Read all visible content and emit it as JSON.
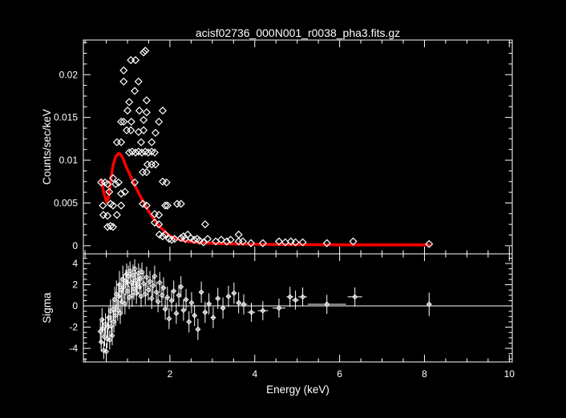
{
  "title": "acisf02736_000N001_r0038_pha3.fits.gz",
  "colors": {
    "background": "#000000",
    "foreground": "#ffffff",
    "model_line": "#ff0000"
  },
  "chart_data": [
    {
      "type": "scatter",
      "panel": "spectrum",
      "title": "acisf02736_000N001_r0038_pha3.fits.gz",
      "xlabel": "Energy (keV)",
      "ylabel": "Counts/sec/keV",
      "xlim": [
        -0.04,
        10.07
      ],
      "ylim": [
        -0.00095,
        0.02405
      ],
      "grid": false,
      "legend": "none",
      "marker": "open-diamond",
      "x_axis": {
        "major_values": [
          2,
          4,
          6,
          8,
          10
        ],
        "major_labels": [
          "2",
          "4",
          "6",
          "8",
          "10"
        ],
        "minor_step": 0.5
      },
      "y_axis": {
        "major_values": [
          0,
          0.005,
          0.01,
          0.015,
          0.02
        ],
        "major_labels": [
          "0",
          "0.005",
          "0.01",
          "0.015",
          "0.02"
        ],
        "minor_step": 0.00125
      },
      "points": [
        [
          1.38,
          0.0226
        ],
        [
          1.42,
          0.0228
        ],
        [
          1.08,
          0.0217
        ],
        [
          1.19,
          0.0217
        ],
        [
          0.91,
          0.0205
        ],
        [
          0.91,
          0.0192
        ],
        [
          1.26,
          0.0192
        ],
        [
          1.17,
          0.0181
        ],
        [
          1.04,
          0.0168
        ],
        [
          1.45,
          0.017
        ],
        [
          1.0,
          0.0158
        ],
        [
          1.28,
          0.0158
        ],
        [
          1.45,
          0.0156
        ],
        [
          1.83,
          0.0158
        ],
        [
          0.85,
          0.0145
        ],
        [
          0.91,
          0.0145
        ],
        [
          1.09,
          0.0145
        ],
        [
          1.38,
          0.0147
        ],
        [
          1.74,
          0.0145
        ],
        [
          0.98,
          0.0135
        ],
        [
          1.08,
          0.0135
        ],
        [
          1.26,
          0.0133
        ],
        [
          1.38,
          0.0135
        ],
        [
          1.66,
          0.0132
        ],
        [
          0.75,
          0.0121
        ],
        [
          0.85,
          0.0121
        ],
        [
          1.32,
          0.0121
        ],
        [
          1.57,
          0.0121
        ],
        [
          1.04,
          0.0109
        ],
        [
          1.11,
          0.011
        ],
        [
          1.19,
          0.0109
        ],
        [
          1.26,
          0.011
        ],
        [
          1.34,
          0.0109
        ],
        [
          1.42,
          0.011
        ],
        [
          1.49,
          0.0109
        ],
        [
          1.57,
          0.011
        ],
        [
          1.64,
          0.0109
        ],
        [
          1.47,
          0.0095
        ],
        [
          1.57,
          0.0095
        ],
        [
          1.66,
          0.0095
        ],
        [
          1.36,
          0.0086
        ],
        [
          1.45,
          0.0086
        ],
        [
          0.66,
          0.0079
        ],
        [
          1.17,
          0.0074
        ],
        [
          1.83,
          0.0075
        ],
        [
          1.92,
          0.0074
        ],
        [
          0.38,
          0.0074
        ],
        [
          0.47,
          0.0074
        ],
        [
          0.53,
          0.0072
        ],
        [
          0.72,
          0.0072
        ],
        [
          0.79,
          0.0074
        ],
        [
          0.57,
          0.0063
        ],
        [
          0.85,
          0.0061
        ],
        [
          0.94,
          0.0063
        ],
        [
          0.42,
          0.0047
        ],
        [
          0.6,
          0.0049
        ],
        [
          0.66,
          0.0047
        ],
        [
          0.85,
          0.0047
        ],
        [
          1.36,
          0.0049
        ],
        [
          1.45,
          0.0047
        ],
        [
          1.89,
          0.0047
        ],
        [
          1.94,
          0.0047
        ],
        [
          2.17,
          0.0049
        ],
        [
          2.26,
          0.0049
        ],
        [
          0.43,
          0.0036
        ],
        [
          0.53,
          0.0035
        ],
        [
          0.75,
          0.0036
        ],
        [
          1.64,
          0.0037
        ],
        [
          1.74,
          0.0036
        ],
        [
          0.53,
          0.0022
        ],
        [
          0.6,
          0.0023
        ],
        [
          0.66,
          0.0022
        ],
        [
          1.64,
          0.0027
        ],
        [
          1.74,
          0.0025
        ],
        [
          1.75,
          0.0013
        ],
        [
          1.83,
          0.0011
        ],
        [
          1.89,
          0.0013
        ],
        [
          1.98,
          0.0008
        ],
        [
          2.04,
          0.0007
        ],
        [
          2.11,
          0.0008
        ],
        [
          2.26,
          0.0009
        ],
        [
          2.32,
          0.0011
        ],
        [
          2.36,
          0.0008
        ],
        [
          2.42,
          0.0013
        ],
        [
          2.49,
          0.0009
        ],
        [
          2.57,
          0.0007
        ],
        [
          2.64,
          0.0008
        ],
        [
          2.7,
          0.0006
        ],
        [
          2.79,
          0.0004
        ],
        [
          2.83,
          0.0025
        ],
        [
          2.89,
          0.0008
        ],
        [
          3.08,
          0.0005
        ],
        [
          3.21,
          0.0007
        ],
        [
          3.34,
          0.0005
        ],
        [
          3.43,
          0.0007
        ],
        [
          3.62,
          0.0013
        ],
        [
          3.62,
          0.0005
        ],
        [
          3.72,
          0.0005
        ],
        [
          3.91,
          0.0003
        ],
        [
          4.19,
          0.0003
        ],
        [
          4.57,
          0.0005
        ],
        [
          4.72,
          0.0004
        ],
        [
          4.85,
          0.0005
        ],
        [
          4.96,
          0.0004
        ],
        [
          5.13,
          0.0004
        ],
        [
          5.7,
          0.0003
        ],
        [
          6.32,
          0.0005
        ],
        [
          8.11,
          0.0002
        ]
      ],
      "model_line": {
        "color": "#ff0000",
        "points": [
          [
            0.38,
            0.0077
          ],
          [
            0.45,
            0.006
          ],
          [
            0.51,
            0.0051
          ],
          [
            0.55,
            0.0056
          ],
          [
            0.6,
            0.0075
          ],
          [
            0.66,
            0.0094
          ],
          [
            0.72,
            0.0104
          ],
          [
            0.79,
            0.0108
          ],
          [
            0.85,
            0.0106
          ],
          [
            0.91,
            0.01
          ],
          [
            0.98,
            0.0091
          ],
          [
            1.06,
            0.0083
          ],
          [
            1.13,
            0.0075
          ],
          [
            1.21,
            0.0067
          ],
          [
            1.3,
            0.0058
          ],
          [
            1.4,
            0.0049
          ],
          [
            1.49,
            0.0041
          ],
          [
            1.58,
            0.0034
          ],
          [
            1.68,
            0.0027
          ],
          [
            1.79,
            0.0021
          ],
          [
            1.91,
            0.0015
          ],
          [
            2.02,
            0.0011
          ],
          [
            2.13,
            0.00085
          ],
          [
            2.26,
            0.00065
          ],
          [
            2.42,
            0.0005
          ],
          [
            2.6,
            0.0004
          ],
          [
            2.83,
            0.00032
          ],
          [
            3.1,
            0.00027
          ],
          [
            3.4,
            0.00022
          ],
          [
            3.8,
            0.00018
          ],
          [
            4.3,
            0.00015
          ],
          [
            5.0,
            0.00013
          ],
          [
            6.0,
            0.00011
          ],
          [
            7.0,
            0.0001
          ],
          [
            8.11,
            0.0001
          ]
        ]
      }
    },
    {
      "type": "scatter",
      "panel": "residuals",
      "xlabel": "Energy (keV)",
      "ylabel": "Sigma",
      "xlim": [
        -0.04,
        10.07
      ],
      "ylim": [
        -5.28,
        4.91
      ],
      "grid": false,
      "zero_line": true,
      "marker": "open-diamond-with-error-bars",
      "y_axis": {
        "major_values": [
          -4,
          -2,
          0,
          2,
          4
        ],
        "major_labels": [
          "-4",
          "-2",
          "0",
          "2",
          "4"
        ],
        "minor_step": 0.5
      },
      "points_format": [
        "energy_keV",
        "sigma",
        "y_err",
        "x_err"
      ],
      "points": [
        [
          0.36,
          -2.4,
          1.0,
          0.03
        ],
        [
          0.38,
          -3.4,
          0.9,
          0.03
        ],
        [
          0.4,
          -1.3,
          1.1,
          0.02
        ],
        [
          0.42,
          -2.1,
          1.0,
          0.02
        ],
        [
          0.44,
          -4.2,
          0.8,
          0.02
        ],
        [
          0.46,
          -2.9,
          0.9,
          0.02
        ],
        [
          0.48,
          -1.7,
          1.0,
          0.02
        ],
        [
          0.5,
          -4.3,
          0.8,
          0.02
        ],
        [
          0.52,
          -3.1,
          0.9,
          0.02
        ],
        [
          0.54,
          -2.0,
          1.0,
          0.02
        ],
        [
          0.56,
          -1.1,
          1.0,
          0.02
        ],
        [
          0.58,
          -3.2,
          0.9,
          0.02
        ],
        [
          0.6,
          -0.5,
          1.1,
          0.02
        ],
        [
          0.62,
          -1.9,
          1.0,
          0.02
        ],
        [
          0.64,
          -2.8,
          0.9,
          0.02
        ],
        [
          0.66,
          -0.3,
          1.1,
          0.02
        ],
        [
          0.68,
          -1.5,
          1.0,
          0.02
        ],
        [
          0.7,
          0.6,
          1.2,
          0.02
        ],
        [
          0.72,
          -0.9,
          1.0,
          0.02
        ],
        [
          0.74,
          1.1,
          1.3,
          0.02
        ],
        [
          0.77,
          -0.4,
          1.0,
          0.02
        ],
        [
          0.79,
          0.9,
          1.2,
          0.02
        ],
        [
          0.81,
          2.0,
          1.3,
          0.02
        ],
        [
          0.83,
          -0.7,
          1.0,
          0.02
        ],
        [
          0.85,
          1.5,
          1.2,
          0.02
        ],
        [
          0.87,
          0.4,
          1.1,
          0.02
        ],
        [
          0.89,
          2.5,
          1.3,
          0.02
        ],
        [
          0.91,
          1.8,
          1.2,
          0.02
        ],
        [
          0.94,
          0.2,
          1.0,
          0.02
        ],
        [
          0.96,
          2.2,
          1.2,
          0.02
        ],
        [
          0.98,
          3.0,
          1.0,
          0.02
        ],
        [
          1.0,
          1.4,
          1.1,
          0.02
        ],
        [
          1.02,
          2.8,
          1.0,
          0.02
        ],
        [
          1.04,
          0.8,
          1.1,
          0.02
        ],
        [
          1.06,
          3.3,
          0.9,
          0.02
        ],
        [
          1.09,
          2.2,
          1.0,
          0.02
        ],
        [
          1.11,
          1.0,
          1.1,
          0.02
        ],
        [
          1.13,
          2.9,
          1.0,
          0.02
        ],
        [
          1.15,
          1.6,
          1.0,
          0.02
        ],
        [
          1.17,
          3.5,
          0.9,
          0.02
        ],
        [
          1.19,
          2.4,
          1.0,
          0.02
        ],
        [
          1.21,
          1.2,
          1.0,
          0.02
        ],
        [
          1.23,
          2.0,
          1.0,
          0.02
        ],
        [
          1.26,
          3.1,
          0.9,
          0.02
        ],
        [
          1.28,
          1.8,
          1.0,
          0.02
        ],
        [
          1.3,
          2.6,
          1.0,
          0.02
        ],
        [
          1.32,
          0.9,
          1.0,
          0.02
        ],
        [
          1.34,
          3.2,
          0.9,
          0.02
        ],
        [
          1.38,
          2.1,
          1.0,
          0.02
        ],
        [
          1.42,
          1.1,
          1.0,
          0.02
        ],
        [
          1.45,
          2.7,
          1.0,
          0.02
        ],
        [
          1.49,
          1.5,
          1.0,
          0.02
        ],
        [
          1.53,
          2.3,
          1.0,
          0.02
        ],
        [
          1.57,
          0.7,
          1.0,
          0.02
        ],
        [
          1.6,
          1.9,
          1.0,
          0.02
        ],
        [
          1.64,
          2.8,
          1.0,
          0.02
        ],
        [
          1.68,
          1.3,
          1.0,
          0.02
        ],
        [
          1.72,
          0.4,
          1.0,
          0.02
        ],
        [
          1.76,
          2.2,
          1.0,
          0.02
        ],
        [
          1.81,
          1.0,
          1.0,
          0.02
        ],
        [
          1.85,
          1.7,
          1.0,
          0.03
        ],
        [
          1.89,
          -0.3,
          1.0,
          0.03
        ],
        [
          1.94,
          0.8,
          1.0,
          0.03
        ],
        [
          1.98,
          -1.2,
          1.0,
          0.03
        ],
        [
          2.04,
          0.5,
          1.0,
          0.03
        ],
        [
          2.09,
          1.4,
          1.0,
          0.03
        ],
        [
          2.15,
          -0.7,
          1.0,
          0.03
        ],
        [
          2.21,
          1.0,
          1.0,
          0.03
        ],
        [
          2.26,
          1.8,
          1.0,
          0.03
        ],
        [
          2.32,
          -0.4,
          1.0,
          0.03
        ],
        [
          2.38,
          0.6,
          1.0,
          0.03
        ],
        [
          2.45,
          -1.5,
          1.0,
          0.03
        ],
        [
          2.51,
          0.3,
          1.0,
          0.03
        ],
        [
          2.58,
          -0.9,
          1.0,
          0.04
        ],
        [
          2.66,
          -2.2,
          1.0,
          0.04
        ],
        [
          2.74,
          1.3,
          1.0,
          0.04
        ],
        [
          2.83,
          -0.6,
          1.0,
          0.04
        ],
        [
          2.92,
          0.2,
          1.0,
          0.04
        ],
        [
          3.02,
          -1.1,
          1.0,
          0.04
        ],
        [
          3.13,
          0.7,
          1.0,
          0.05
        ],
        [
          3.25,
          -0.2,
          1.0,
          0.05
        ],
        [
          3.38,
          0.9,
          1.0,
          0.05
        ],
        [
          3.51,
          1.2,
          1.0,
          0.05
        ],
        [
          3.62,
          0.3,
          1.0,
          0.05
        ],
        [
          3.74,
          0.15,
          0.95,
          0.08
        ],
        [
          3.92,
          -0.6,
          0.9,
          0.09
        ],
        [
          4.19,
          -0.45,
          0.9,
          0.12
        ],
        [
          4.57,
          -0.2,
          0.9,
          0.15
        ],
        [
          4.83,
          0.85,
          0.95,
          0.08
        ],
        [
          4.96,
          0.55,
          0.9,
          0.08
        ],
        [
          5.13,
          0.85,
          0.9,
          0.1
        ],
        [
          5.7,
          0.15,
          0.9,
          0.45
        ],
        [
          6.36,
          0.85,
          0.9,
          0.17
        ],
        [
          8.11,
          0.15,
          1.1,
          0.04
        ]
      ]
    }
  ]
}
